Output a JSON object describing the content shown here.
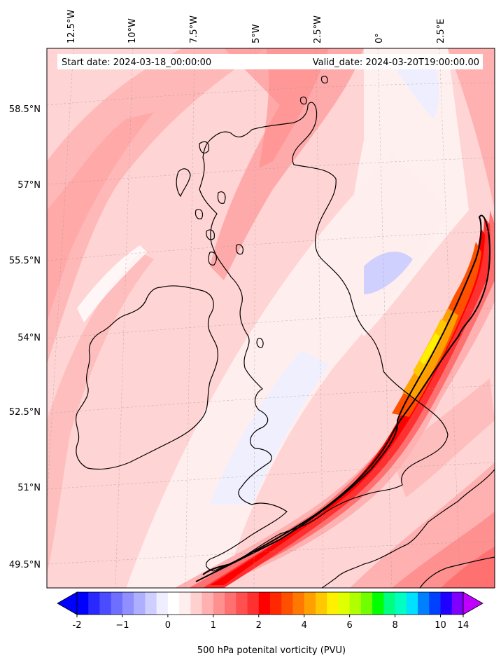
{
  "header": {
    "start_date": "Start date: 2024-03-18_00:00:00",
    "valid_date": "Valid_date: 2024-03-20T19:00:00.00"
  },
  "axes": {
    "longitude_labels": [
      "12.5°W",
      "10°W",
      "7.5°W",
      "5°W",
      "2.5°W",
      "0°",
      "2.5°E"
    ],
    "latitude_labels": [
      "58.5°N",
      "57°N",
      "55.5°N",
      "54°N",
      "52.5°N",
      "51°N",
      "49.5°N"
    ]
  },
  "colorbar": {
    "label": "500 hPa potenital vorticity (PVU)",
    "ticks": [
      "-2",
      "−1",
      "0",
      "1",
      "2",
      "4",
      "6",
      "8",
      "10",
      "14"
    ],
    "tick_values": [
      -2,
      -1,
      0,
      1,
      2,
      4,
      6,
      8,
      10,
      14
    ],
    "colors": [
      "#0000ff",
      "#2828ff",
      "#4b4bff",
      "#6f6fff",
      "#8f8fff",
      "#afafff",
      "#cfcfff",
      "#eeeeff",
      "#ffffff",
      "#ffeeee",
      "#ffd0d0",
      "#ffb0b0",
      "#ff9090",
      "#ff7070",
      "#ff5050",
      "#ff3030",
      "#ff0000",
      "#ff2800",
      "#ff5000",
      "#ff7800",
      "#ffa000",
      "#ffc800",
      "#fff000",
      "#e0ff00",
      "#b0ff00",
      "#70ff00",
      "#00ff00",
      "#00ff80",
      "#00ffc0",
      "#00e0ff",
      "#0080ff",
      "#0040ff",
      "#2000ff",
      "#8000ff"
    ],
    "extend_min_color": "#0000ff",
    "extend_max_color": "#c000ff"
  },
  "colors": {
    "land_outline": "#000000",
    "background_field": "#ffd4d4",
    "jet_core": "#ff0000",
    "max_core": "#ffee00"
  }
}
